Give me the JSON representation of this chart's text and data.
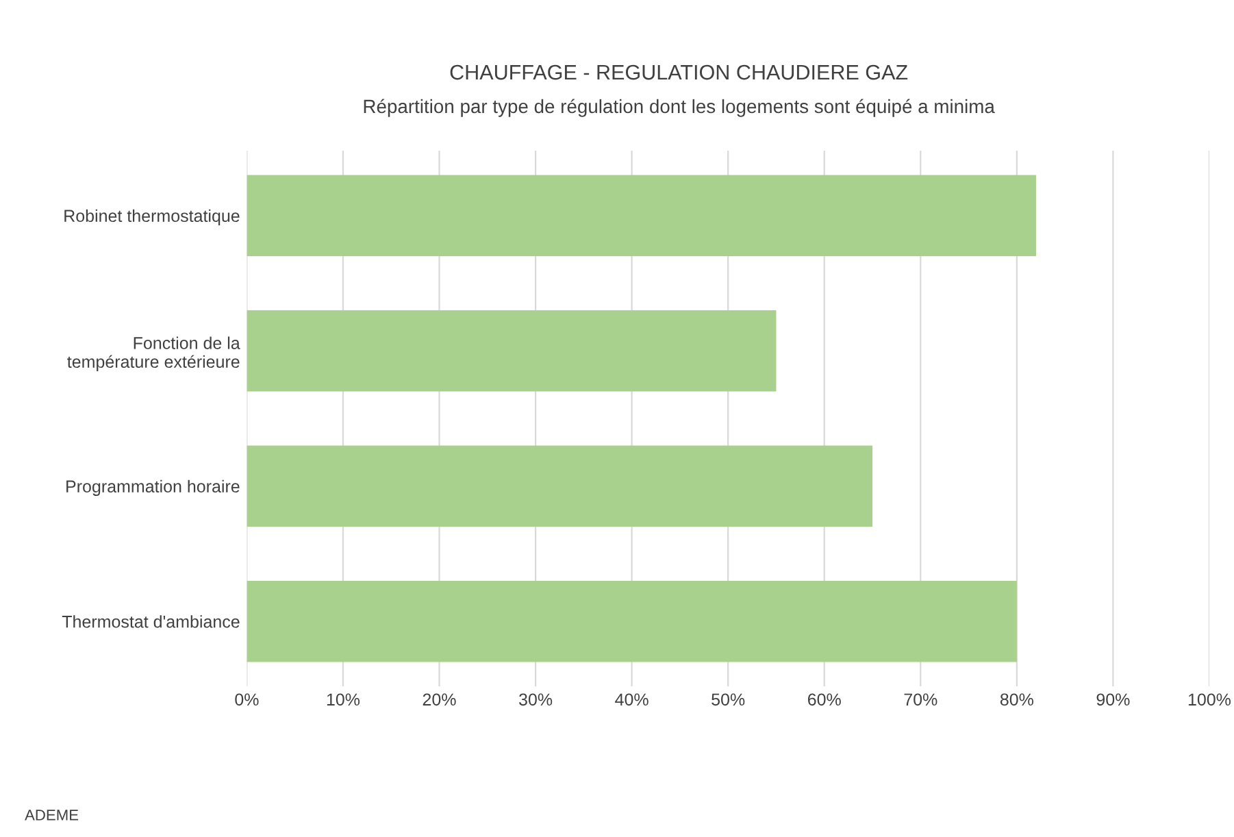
{
  "chart_data": {
    "type": "bar",
    "orientation": "horizontal",
    "title": "CHAUFFAGE - REGULATION CHAUDIERE GAZ",
    "subtitle": "Répartition par type de régulation dont les logements sont équipé a minima",
    "categories": [
      "Robinet thermostatique",
      "Fonction de la température extérieure",
      "Programmation horaire",
      "Thermostat d'ambiance"
    ],
    "values": [
      82,
      55,
      65,
      80
    ],
    "color": "#a9d18e",
    "xlim": [
      0,
      100
    ],
    "xticks": [
      {
        "value": 0,
        "label": "0%"
      },
      {
        "value": 10,
        "label": "10%"
      },
      {
        "value": 20,
        "label": "20%"
      },
      {
        "value": 30,
        "label": "30%"
      },
      {
        "value": 40,
        "label": "40%"
      },
      {
        "value": 50,
        "label": "50%"
      },
      {
        "value": 60,
        "label": "60%"
      },
      {
        "value": 70,
        "label": "70%"
      },
      {
        "value": 80,
        "label": "80%"
      },
      {
        "value": 90,
        "label": "90%"
      },
      {
        "value": 100,
        "label": "100%"
      }
    ],
    "grid": "x",
    "annotations": [
      "ADEME"
    ]
  }
}
